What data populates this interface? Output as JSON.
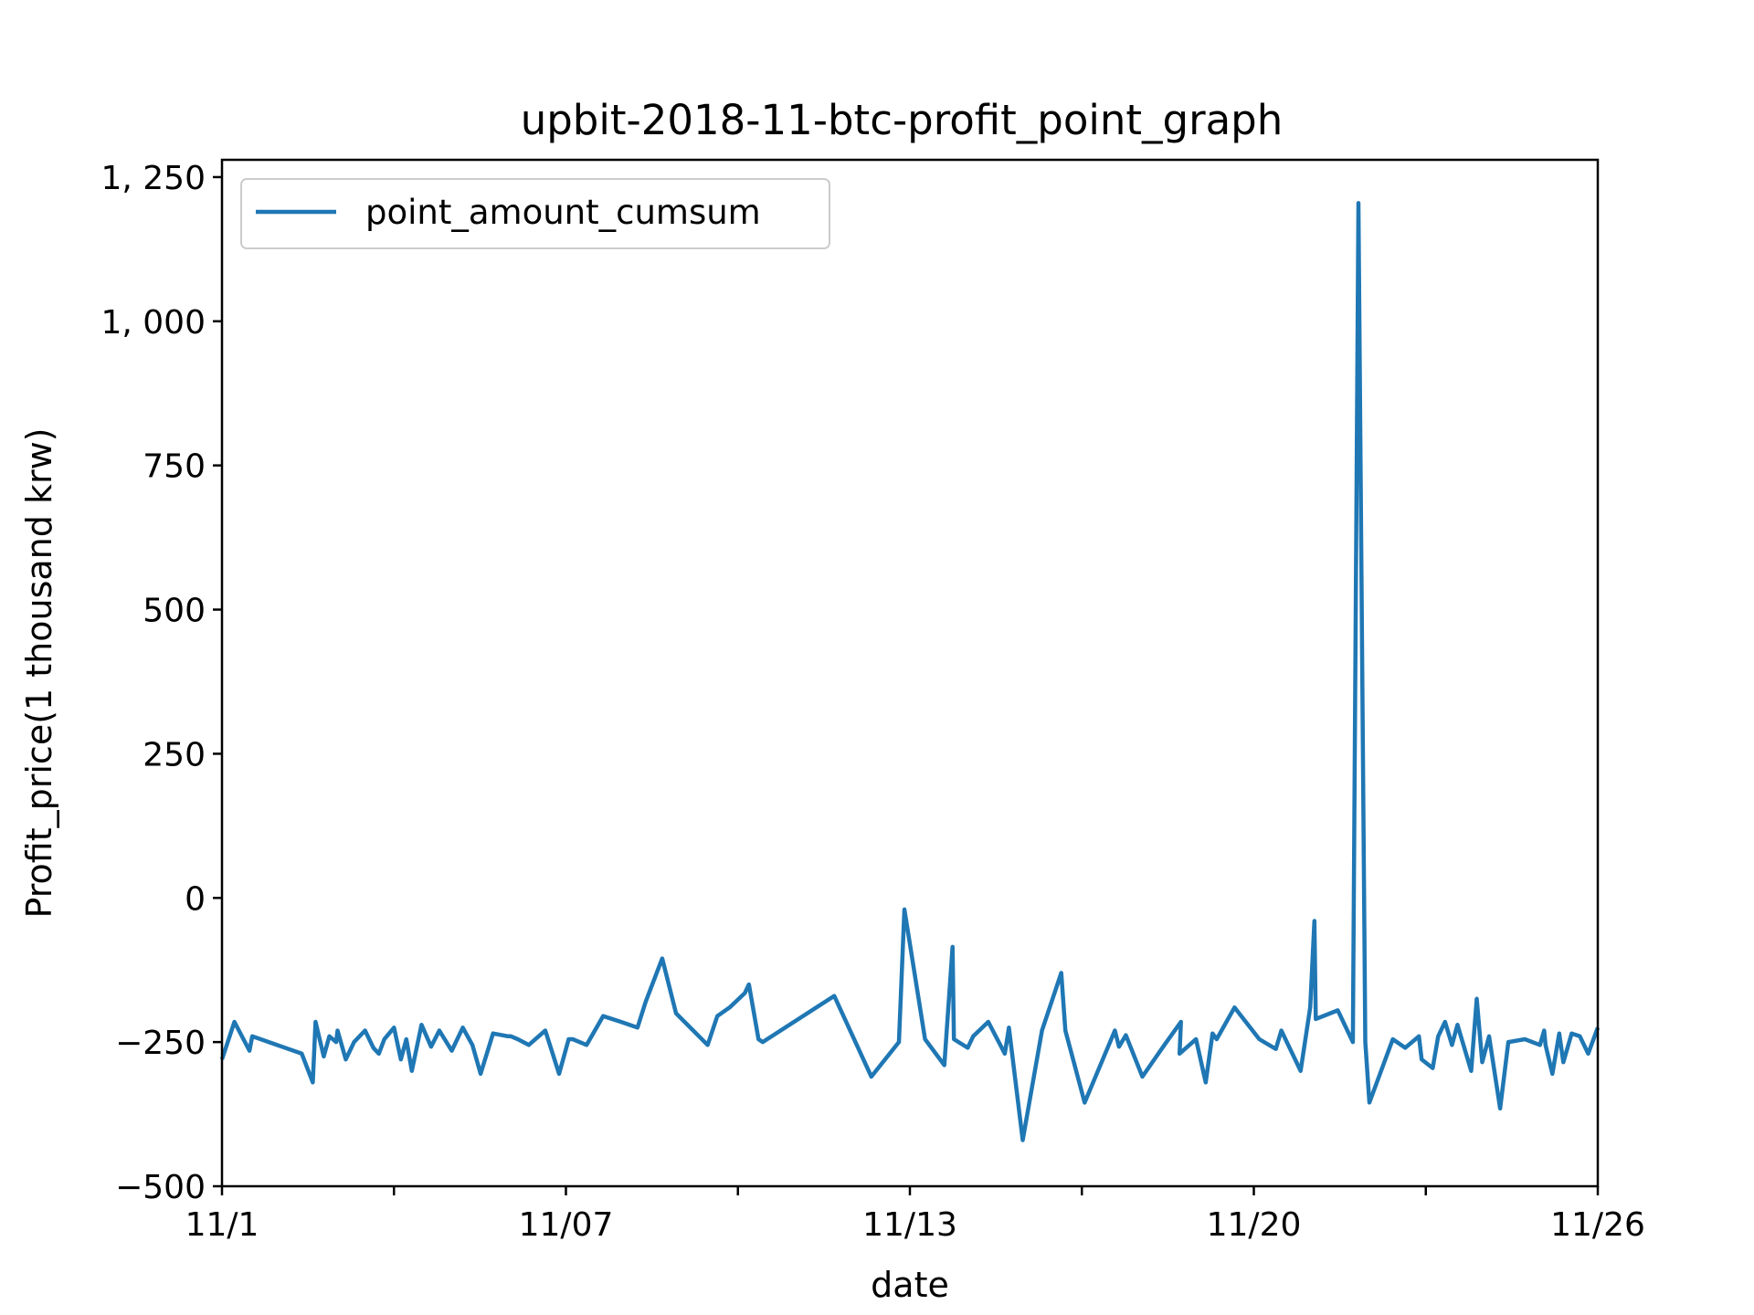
{
  "chart_data": {
    "type": "line",
    "title": "upbit-2018-11-btc-profit_point_graph",
    "xlabel": "date",
    "ylabel": "Profit_price(1 thousand krw)",
    "x_tick_labels": [
      "11/1",
      "",
      "11/07",
      "",
      "11/13",
      "",
      "11/20",
      "",
      "11/26"
    ],
    "y_ticks": [
      -500,
      -250,
      0,
      250,
      500,
      750,
      1000,
      1250
    ],
    "y_tick_labels": [
      "−500",
      "−250",
      "0",
      "250",
      "500",
      "750",
      "1, 000",
      "1, 250"
    ],
    "ylim": [
      -500,
      1280
    ],
    "xlim": [
      0,
      1
    ],
    "grid": false,
    "legend_position": "top-left",
    "color": "#1f77b4",
    "series": [
      {
        "name": "point_amount_cumsum",
        "x": [
          0.0,
          0.009,
          0.02,
          0.022,
          0.058,
          0.066,
          0.068,
          0.074,
          0.078,
          0.083,
          0.084,
          0.09,
          0.096,
          0.104,
          0.11,
          0.114,
          0.118,
          0.125,
          0.13,
          0.134,
          0.138,
          0.145,
          0.152,
          0.158,
          0.167,
          0.175,
          0.182,
          0.188,
          0.197,
          0.208,
          0.21,
          0.215,
          0.223,
          0.235,
          0.245,
          0.252,
          0.255,
          0.265,
          0.277,
          0.29,
          0.302,
          0.308,
          0.32,
          0.33,
          0.353,
          0.36,
          0.369,
          0.38,
          0.383,
          0.39,
          0.393,
          0.445,
          0.472,
          0.492,
          0.496,
          0.511,
          0.525,
          0.531,
          0.532,
          0.542,
          0.546,
          0.557,
          0.569,
          0.572,
          0.582,
          0.596,
          0.61,
          0.613,
          0.627,
          0.649,
          0.652,
          0.657,
          0.669,
          0.685,
          0.697,
          0.696,
          0.708,
          0.715,
          0.72,
          0.723,
          0.736,
          0.754,
          0.766,
          0.77,
          0.784,
          0.791,
          0.794,
          0.795,
          0.811,
          0.822,
          0.826,
          0.831,
          0.834,
          0.851,
          0.86,
          0.87,
          0.872,
          0.88,
          0.884,
          0.889,
          0.894,
          0.898,
          0.908,
          0.912,
          0.916,
          0.921,
          0.929,
          0.935,
          0.947,
          0.958,
          0.961,
          0.962,
          0.967,
          0.972,
          0.975,
          0.981,
          0.987,
          0.993,
          1.0
        ],
        "y": [
          -280,
          -215,
          -265,
          -240,
          -270,
          -320,
          -215,
          -275,
          -240,
          -250,
          -230,
          -280,
          -250,
          -230,
          -260,
          -270,
          -245,
          -225,
          -280,
          -245,
          -300,
          -220,
          -258,
          -230,
          -265,
          -225,
          -255,
          -305,
          -235,
          -240,
          -240,
          -245,
          -255,
          -230,
          -305,
          -245,
          -245,
          -255,
          -205,
          -215,
          -225,
          -180,
          -105,
          -200,
          -255,
          -205,
          -190,
          -165,
          -150,
          -245,
          -250,
          -170,
          -310,
          -250,
          -20,
          -245,
          -290,
          -85,
          -245,
          -260,
          -240,
          -215,
          -270,
          -225,
          -420,
          -230,
          -130,
          -230,
          -355,
          -230,
          -258,
          -238,
          -310,
          -255,
          -215,
          -270,
          -245,
          -320,
          -235,
          -245,
          -190,
          -245,
          -262,
          -230,
          -300,
          -190,
          -40,
          -210,
          -195,
          -250,
          1205,
          -250,
          -355,
          -245,
          -260,
          -240,
          -280,
          -295,
          -240,
          -215,
          -255,
          -220,
          -300,
          -175,
          -285,
          -240,
          -365,
          -250,
          -245,
          -255,
          -230,
          -255,
          -305,
          -235,
          -285,
          -235,
          -240,
          -270,
          -225
        ]
      }
    ]
  }
}
